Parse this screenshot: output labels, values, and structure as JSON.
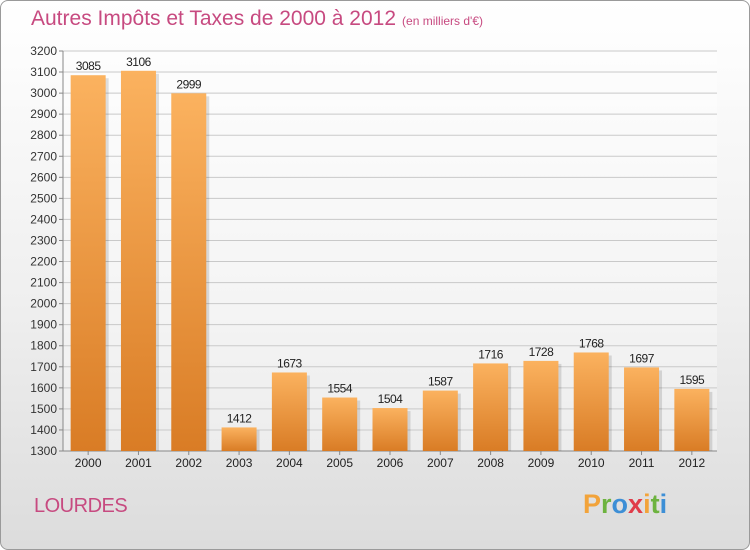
{
  "header": {
    "title": "Autres Impôts et Taxes de 2000 à 2012",
    "unit": "(en milliers d'€)"
  },
  "footer": {
    "city": "LOURDES",
    "logo": {
      "letters": [
        "P",
        "r",
        "o",
        "x",
        "i",
        "t",
        "i"
      ],
      "colors": [
        "#f2a33a",
        "#6db33f",
        "#3d8fd6",
        "#e03c4a",
        "#f2a33a",
        "#6db33f",
        "#3d8fd6"
      ]
    }
  },
  "colors": {
    "bar_light": "#fbb25f",
    "bar_dark": "#d97c25",
    "text_accent": "#c74a80"
  },
  "chart_data": {
    "type": "bar",
    "title": "Autres Impôts et Taxes de 2000 à 2012",
    "subtitle": "(en milliers d'€)",
    "categories": [
      "2000",
      "2001",
      "2002",
      "2003",
      "2004",
      "2005",
      "2006",
      "2007",
      "2008",
      "2009",
      "2010",
      "2011",
      "2012"
    ],
    "values": [
      3085,
      3106,
      2999,
      1412,
      1673,
      1554,
      1504,
      1587,
      1716,
      1728,
      1768,
      1697,
      1595
    ],
    "ylim": [
      1300,
      3200
    ],
    "yticks": [
      1300,
      1400,
      1500,
      1600,
      1700,
      1800,
      1900,
      2000,
      2100,
      2200,
      2300,
      2400,
      2500,
      2600,
      2700,
      2800,
      2900,
      3000,
      3100,
      3200
    ],
    "grid": true,
    "legend": "none"
  }
}
